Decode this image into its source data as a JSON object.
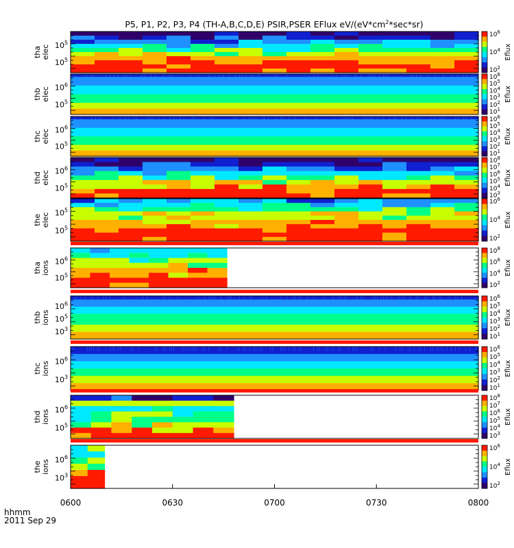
{
  "chart_data": {
    "type": "heatmap",
    "title": "P5, P1, P2, P3, P4 (TH-A,B,C,D,E) PSIR,PSER EFlux eV/(eV*cm",
    "title_sup": "2",
    "title_tail": "*sec*sr)",
    "x_axis_label": "hhmm",
    "date_label": "2011 Sep 29",
    "x_ticks": [
      "0600",
      "0630",
      "0700",
      "0730",
      "0800"
    ],
    "x_range_minutes": [
      0,
      120
    ],
    "colorbar_label": "Eflux",
    "panels": [
      {
        "label1": "tha",
        "label2": "elec",
        "y_ticks": [
          "5",
          "5"
        ],
        "cbar_ticks": [
          "6",
          "4",
          "2"
        ],
        "ncols": 17,
        "end_minute": 120,
        "rows": [
          1,
          2,
          3,
          4,
          5,
          6,
          7,
          8,
          8,
          8
        ],
        "banded": false
      },
      {
        "label1": "thb",
        "label2": "elec",
        "y_ticks": [
          "6",
          "5"
        ],
        "cbar_ticks": [
          "6",
          "5",
          "4",
          "3",
          "2",
          "1"
        ],
        "ncols": 0,
        "end_minute": 120,
        "rows": [
          2,
          3,
          3,
          3,
          4,
          4,
          4,
          5,
          5,
          5,
          6,
          6,
          7,
          7
        ],
        "banded": true
      },
      {
        "label1": "thc",
        "label2": "elec",
        "y_ticks": [
          "6",
          "5"
        ],
        "cbar_ticks": [
          "6",
          "5",
          "4",
          "3",
          "2",
          "1"
        ],
        "ncols": 0,
        "end_minute": 120,
        "rows": [
          2,
          3,
          3,
          3,
          4,
          4,
          4,
          5,
          5,
          5,
          6,
          6,
          7,
          7
        ],
        "banded": true
      },
      {
        "label1": "thd",
        "label2": "elec",
        "y_ticks": [
          "6",
          "5"
        ],
        "cbar_ticks": [
          "8",
          "7",
          "6",
          "5",
          "4",
          "3"
        ],
        "ncols": 17,
        "end_minute": 120,
        "rows": [
          1,
          2,
          3,
          4,
          5,
          6,
          7,
          8,
          8
        ],
        "banded": false
      },
      {
        "label1": "the",
        "label2": "elec",
        "y_ticks": [
          "5",
          "5"
        ],
        "cbar_ticks": [
          "6",
          "4",
          "2"
        ],
        "ncols": 17,
        "end_minute": 120,
        "rows": [
          3,
          4,
          5,
          6,
          6,
          7,
          7,
          8,
          8,
          8
        ],
        "banded": false
      },
      {
        "label1": "tha",
        "label2": "ions",
        "y_ticks": [
          "6",
          "5"
        ],
        "cbar_ticks": [
          "8",
          "6",
          "4",
          "2"
        ],
        "ncols": 8,
        "end_minute": 46,
        "rows": [
          4,
          4,
          5,
          6,
          7,
          7,
          8,
          8
        ],
        "banded": false
      },
      {
        "label1": "thb",
        "label2": "ions",
        "y_ticks": [
          "6",
          "5",
          "3"
        ],
        "cbar_ticks": [
          "6",
          "5",
          "4",
          "3",
          "2",
          "1"
        ],
        "ncols": 0,
        "end_minute": 120,
        "rows": [
          2,
          3,
          3,
          4,
          4,
          5,
          5,
          5,
          6,
          6,
          7,
          7
        ],
        "banded": true
      },
      {
        "label1": "thc",
        "label2": "ions",
        "y_ticks": [
          "6",
          "3"
        ],
        "cbar_ticks": [
          "6",
          "5",
          "4",
          "3",
          "2",
          "1"
        ],
        "ncols": 0,
        "end_minute": 120,
        "rows": [
          2,
          2,
          3,
          3,
          4,
          4,
          5,
          5,
          6,
          6,
          7,
          7
        ],
        "banded": true
      },
      {
        "label1": "thd",
        "label2": "ions",
        "y_ticks": [
          "6",
          "5"
        ],
        "cbar_ticks": [
          "8",
          "7",
          "6",
          "5",
          "4",
          "3"
        ],
        "ncols": 8,
        "end_minute": 48,
        "rows": [
          2,
          6,
          4,
          5,
          5,
          6,
          7,
          8
        ],
        "banded": false
      },
      {
        "label1": "the",
        "label2": "ions",
        "y_ticks": [
          "6",
          "3"
        ],
        "cbar_ticks": [
          "6",
          "4",
          "2"
        ],
        "ncols": 2,
        "end_minute": 10,
        "rows": [
          5,
          5,
          6,
          6,
          7,
          8,
          8
        ],
        "banded": false
      }
    ],
    "colormap": [
      "#ffffff",
      "#30006a",
      "#1020d0",
      "#1e90ff",
      "#00e8ff",
      "#00ff88",
      "#c8ff00",
      "#ffb000",
      "#ff1a00"
    ]
  }
}
